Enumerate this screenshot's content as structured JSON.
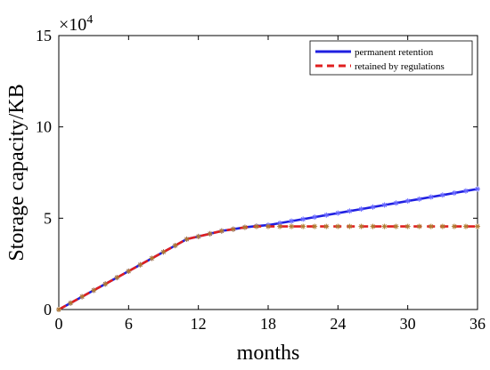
{
  "chart_data": {
    "type": "line",
    "xlabel": "months",
    "ylabel": "Storage capacity/KB",
    "xlim": [
      0,
      36
    ],
    "ylim": [
      0,
      150000
    ],
    "x_ticks": [
      0,
      6,
      12,
      18,
      24,
      30,
      36
    ],
    "y_ticks": [
      0,
      50000,
      100000,
      150000
    ],
    "y_tick_labels": [
      "0",
      "5",
      "10",
      "15"
    ],
    "y_exponent": {
      "base": "×10",
      "power": "4"
    },
    "grid": false,
    "legend_position": "top-right",
    "series": [
      {
        "name": "permanent retention",
        "color": "#1f1fe0",
        "style": "solid",
        "marker": "asterisk",
        "x": [
          0,
          1,
          2,
          3,
          4,
          5,
          6,
          7,
          8,
          9,
          10,
          11,
          12,
          13,
          14,
          15,
          16,
          17,
          18,
          19,
          20,
          21,
          22,
          23,
          24,
          25,
          26,
          27,
          28,
          29,
          30,
          31,
          32,
          33,
          34,
          35,
          36
        ],
        "y": [
          0,
          3500,
          7000,
          10500,
          14000,
          17500,
          21000,
          24500,
          28000,
          31500,
          35000,
          38500,
          40000,
          41500,
          43000,
          44000,
          45000,
          45700,
          46200,
          47300,
          48400,
          49500,
          50600,
          51700,
          52800,
          53900,
          55000,
          56100,
          57200,
          58300,
          59400,
          60500,
          61600,
          62700,
          63800,
          64900,
          66000
        ]
      },
      {
        "name": "retained by regulations",
        "color": "#e01f1f",
        "style": "dashed",
        "marker": "asterisk",
        "x": [
          0,
          1,
          2,
          3,
          4,
          5,
          6,
          7,
          8,
          9,
          10,
          11,
          12,
          13,
          14,
          15,
          16,
          17,
          18,
          19,
          20,
          21,
          22,
          23,
          24,
          25,
          26,
          27,
          28,
          29,
          30,
          31,
          32,
          33,
          34,
          35,
          36
        ],
        "y": [
          0,
          3500,
          7000,
          10500,
          14000,
          17500,
          21000,
          24500,
          28000,
          31500,
          35000,
          38500,
          40000,
          41500,
          43000,
          44000,
          45000,
          45500,
          45500,
          45500,
          45500,
          45500,
          45500,
          45500,
          45500,
          45500,
          45500,
          45500,
          45500,
          45500,
          45500,
          45500,
          45500,
          45500,
          45500,
          45500,
          45500
        ]
      }
    ]
  }
}
